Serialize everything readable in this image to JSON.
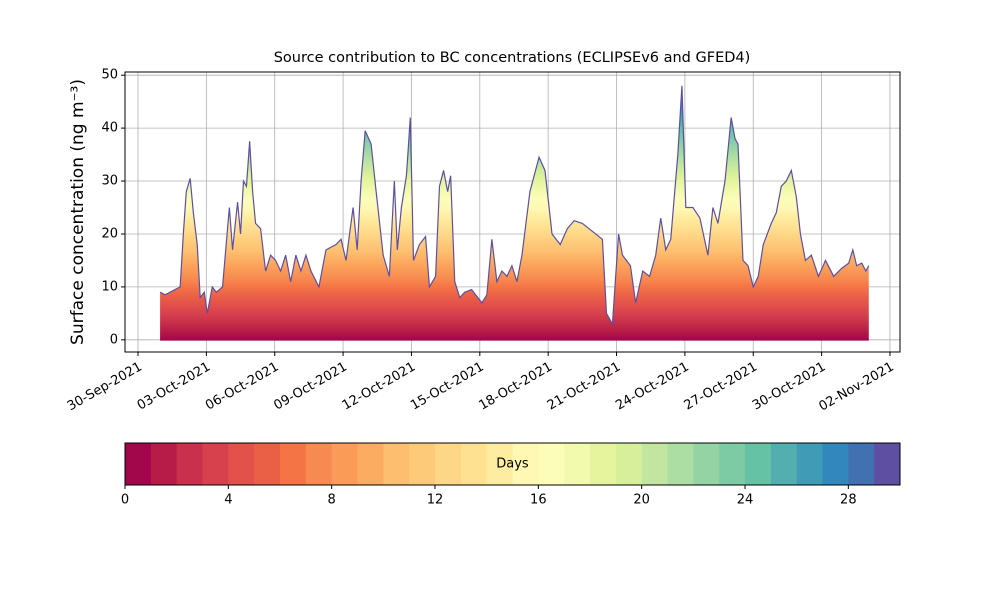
{
  "chart_data": {
    "type": "area",
    "title": "Source contribution to BC concentrations (ECLIPSEv6 and GFED4)",
    "ylabel": "Surface concentration (ng m⁻³)",
    "x": [
      0.97,
      1.19,
      1.63,
      1.85,
      1.99,
      2.12,
      2.29,
      2.43,
      2.6,
      2.73,
      2.91,
      3.04,
      3.26,
      3.44,
      3.71,
      4.01,
      4.15,
      4.37,
      4.5,
      4.63,
      4.76,
      4.9,
      5.03,
      5.16,
      5.38,
      5.6,
      5.82,
      6.04,
      6.26,
      6.48,
      6.7,
      6.93,
      7.15,
      7.37,
      7.59,
      7.94,
      8.25,
      8.69,
      8.91,
      9.13,
      9.44,
      9.62,
      9.79,
      9.97,
      10.23,
      10.45,
      10.76,
      11.03,
      11.25,
      11.38,
      11.56,
      11.78,
      11.95,
      12.09,
      12.35,
      12.62,
      12.79,
      13.06,
      13.23,
      13.41,
      13.59,
      13.72,
      13.9,
      14.12,
      14.34,
      14.64,
      15.09,
      15.31,
      15.53,
      15.75,
      15.97,
      16.19,
      16.41,
      16.63,
      16.85,
      17.2,
      17.6,
      17.86,
      18.17,
      18.53,
      18.84,
      19.14,
      19.5,
      19.94,
      20.38,
      20.56,
      20.82,
      21.09,
      21.26,
      21.61,
      21.84,
      22.15,
      22.45,
      22.72,
      22.94,
      23.16,
      23.38,
      23.69,
      23.87,
      24.04,
      24.35,
      24.66,
      25.01,
      25.23,
      25.45,
      25.76,
      26.03,
      26.2,
      26.33,
      26.55,
      26.77,
      27.0,
      27.22,
      27.44,
      27.79,
      28.01,
      28.23,
      28.45,
      28.67,
      28.89,
      29.07,
      29.29,
      29.55,
      29.86,
      30.17,
      30.53,
      30.88,
      31.19,
      31.37,
      31.54,
      31.76,
      31.94,
      32.07
    ],
    "values": [
      9,
      8.5,
      9.5,
      10,
      20,
      28,
      30.5,
      24,
      18,
      8,
      9,
      5,
      10,
      9,
      10,
      25,
      17,
      26,
      20,
      30,
      29,
      37.5,
      28,
      22,
      21,
      13,
      16,
      15,
      13,
      16,
      11,
      16,
      13,
      16,
      13,
      10,
      17,
      18,
      19,
      15,
      25,
      17,
      30,
      39.5,
      37,
      28,
      16,
      12,
      30,
      17,
      25,
      31,
      42,
      15,
      18,
      19.5,
      10,
      12,
      29,
      32,
      28,
      31,
      11,
      8,
      9,
      9.5,
      7,
      8.5,
      19,
      11,
      13,
      12,
      14,
      11,
      16,
      28,
      34.5,
      32,
      20,
      18,
      21,
      22.5,
      22,
      20.5,
      19,
      5,
      3,
      20,
      16,
      14,
      7,
      13,
      12,
      16,
      23,
      17,
      19,
      35,
      48,
      25,
      25,
      23,
      16,
      25,
      22,
      30,
      42,
      38,
      37,
      15,
      14,
      10,
      12,
      18,
      22,
      24,
      29,
      30,
      32,
      27,
      20,
      15,
      16,
      12,
      15,
      12,
      13.5,
      14.5,
      17,
      14,
      14.5,
      13,
      14
    ],
    "xlim": [
      -0.57,
      33.44
    ],
    "xticks": [
      {
        "value": 0,
        "label": "30-Sep-2021"
      },
      {
        "value": 3,
        "label": "03-Oct-2021"
      },
      {
        "value": 6,
        "label": "06-Oct-2021"
      },
      {
        "value": 9,
        "label": "09-Oct-2021"
      },
      {
        "value": 12,
        "label": "12-Oct-2021"
      },
      {
        "value": 15,
        "label": "15-Oct-2021"
      },
      {
        "value": 18,
        "label": "18-Oct-2021"
      },
      {
        "value": 21,
        "label": "21-Oct-2021"
      },
      {
        "value": 24,
        "label": "24-Oct-2021"
      },
      {
        "value": 27,
        "label": "27-Oct-2021"
      },
      {
        "value": 30,
        "label": "30-Oct-2021"
      },
      {
        "value": 33,
        "label": "02-Nov-2021"
      }
    ],
    "ylim": [
      -2.3,
      50.6
    ],
    "yticks": [
      0,
      10,
      20,
      30,
      40,
      50
    ],
    "grid": true,
    "colorbar": {
      "label": "Days",
      "bins": [
        0,
        1,
        2,
        3,
        4,
        5,
        6,
        7,
        8,
        9,
        10,
        11,
        12,
        13,
        14,
        15,
        16,
        17,
        18,
        19,
        20,
        21,
        22,
        23,
        24,
        25,
        26,
        27,
        28,
        29,
        30
      ],
      "colors": [
        "#a3074b",
        "#b71c48",
        "#c9304b",
        "#d7414e",
        "#e2514a",
        "#ea6047",
        "#f47446",
        "#f78a51",
        "#fa9b58",
        "#fcac60",
        "#fdbe6f",
        "#fdca7a",
        "#fed687",
        "#fee292",
        "#feeda1",
        "#fff8b4",
        "#fbfdb9",
        "#f2faae",
        "#e6f59d",
        "#d7ef9b",
        "#c2e69f",
        "#acdda2",
        "#94d4a4",
        "#7ccba5",
        "#66c2a5",
        "#53afaf",
        "#3f9bb6",
        "#3288bd",
        "#4171b0",
        "#5e4fa2"
      ],
      "ticks": [
        0,
        4,
        8,
        12,
        16,
        20,
        24,
        28
      ]
    }
  }
}
